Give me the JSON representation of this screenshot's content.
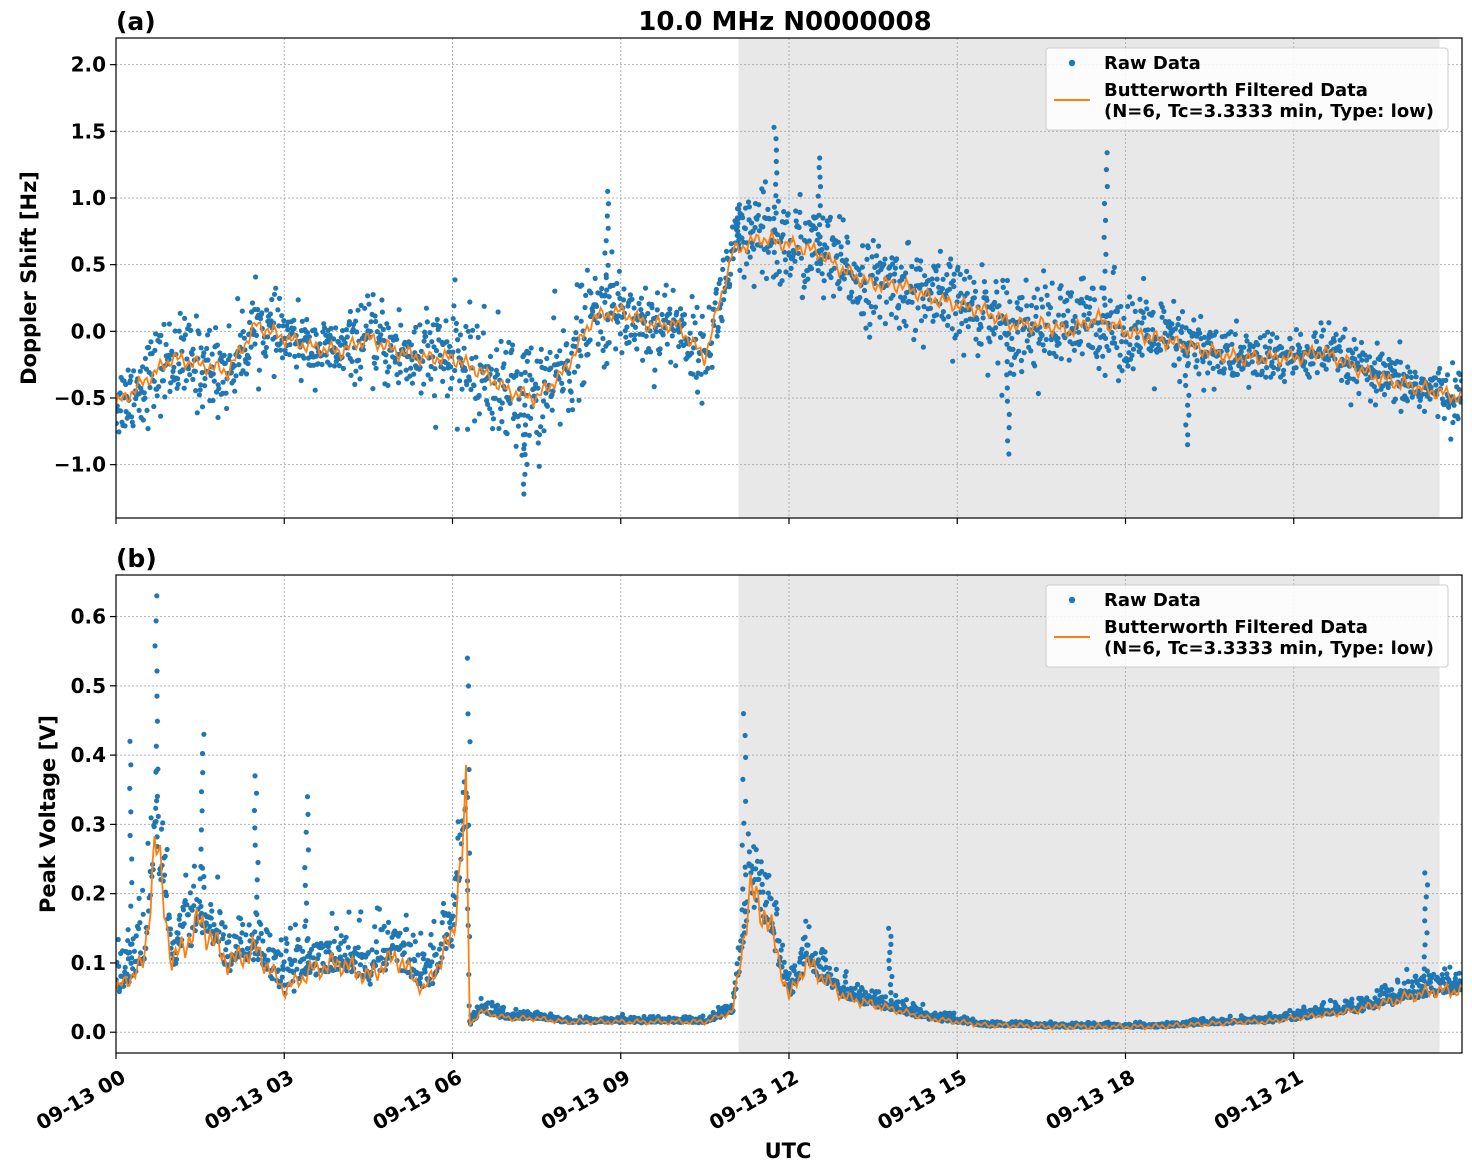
{
  "figure": {
    "title": "10.0 MHz N0000008",
    "xlabel": "UTC"
  },
  "colors": {
    "raw": "#1f77b4",
    "filtered": "#ff7f0e",
    "shade": "#e8e8e8"
  },
  "legend": {
    "raw": "Raw Data",
    "filtered_line1": "Butterworth Filtered Data",
    "filtered_line2": "(N=6, Tc=3.3333 min, Type: low)"
  },
  "chart_data": [
    {
      "type": "scatter",
      "panel_label": "(a)",
      "ylabel": "Doppler Shift [Hz]",
      "xlim": [
        0,
        24
      ],
      "ylim": [
        -1.4,
        2.2
      ],
      "yticks": [
        -1.0,
        -0.5,
        0.0,
        0.5,
        1.0,
        1.5,
        2.0
      ],
      "ytick_labels": [
        "−1.0",
        "−0.5",
        "0.0",
        "0.5",
        "1.0",
        "1.5",
        "2.0"
      ],
      "xticks": [
        0,
        3,
        6,
        9,
        12,
        15,
        18,
        21
      ],
      "xtick_labels": [
        "09-13 00",
        "09-13 03",
        "09-13 06",
        "09-13 09",
        "09-13 12",
        "09-13 15",
        "09-13 18",
        "09-13 21"
      ],
      "shaded_region_hours": [
        11.1,
        23.6
      ],
      "grid": true,
      "legend_position": "top-right",
      "series": [
        {
          "name": "Butterworth Filtered Data",
          "x_hours": [
            0,
            0.5,
            1,
            1.5,
            2,
            2.5,
            3,
            3.5,
            4,
            4.5,
            5,
            5.5,
            6,
            6.5,
            7,
            7.5,
            8,
            8.5,
            9,
            9.5,
            10,
            10.5,
            11,
            11.5,
            12,
            12.5,
            13,
            13.5,
            14,
            14.5,
            15,
            15.5,
            16,
            16.5,
            17,
            17.5,
            18,
            18.5,
            19,
            19.5,
            20,
            20.5,
            21,
            21.5,
            22,
            22.5,
            23,
            23.5,
            24
          ],
          "y": [
            -0.55,
            -0.38,
            -0.2,
            -0.25,
            -0.3,
            0.05,
            -0.05,
            -0.12,
            -0.15,
            -0.05,
            -0.15,
            -0.2,
            -0.2,
            -0.3,
            -0.45,
            -0.5,
            -0.3,
            0.1,
            0.15,
            0.05,
            0.05,
            -0.2,
            0.6,
            0.7,
            0.65,
            0.6,
            0.45,
            0.35,
            0.35,
            0.25,
            0.2,
            0.15,
            0.05,
            0.05,
            0.0,
            0.1,
            0.0,
            -0.05,
            -0.1,
            -0.15,
            -0.2,
            -0.2,
            -0.2,
            -0.15,
            -0.25,
            -0.35,
            -0.4,
            -0.45,
            -0.5
          ]
        },
        {
          "name": "Raw Data",
          "spread": [
            0.25,
            0.28,
            0.3,
            0.3,
            0.28,
            0.25,
            0.22,
            0.2,
            0.2,
            0.25,
            0.3,
            0.32,
            0.35,
            0.38,
            0.4,
            0.4,
            0.38,
            0.35,
            0.32,
            0.3,
            0.28,
            0.25,
            0.3,
            0.35,
            0.35,
            0.32,
            0.3,
            0.28,
            0.28,
            0.3,
            0.3,
            0.3,
            0.32,
            0.32,
            0.32,
            0.32,
            0.3,
            0.28,
            0.25,
            0.22,
            0.2,
            0.18,
            0.18,
            0.18,
            0.18,
            0.18,
            0.18,
            0.18,
            0.18
          ],
          "maxima": [
            [
              11.75,
              1.53
            ],
            [
              12.55,
              1.3
            ],
            [
              17.65,
              1.34
            ],
            [
              8.75,
              1.05
            ],
            [
              11.1,
              0.95
            ],
            [
              7.3,
              -1.22
            ],
            [
              15.9,
              -0.92
            ],
            [
              19.1,
              -0.85
            ]
          ]
        }
      ]
    },
    {
      "type": "scatter",
      "panel_label": "(b)",
      "ylabel": "Peak Voltage [V]",
      "xlim": [
        0,
        24
      ],
      "ylim": [
        -0.03,
        0.66
      ],
      "yticks": [
        0.0,
        0.1,
        0.2,
        0.3,
        0.4,
        0.5,
        0.6
      ],
      "ytick_labels": [
        "0.0",
        "0.1",
        "0.2",
        "0.3",
        "0.4",
        "0.5",
        "0.6"
      ],
      "xticks": [
        0,
        3,
        6,
        9,
        12,
        15,
        18,
        21
      ],
      "xtick_labels": [
        "09-13 00",
        "09-13 03",
        "09-13 06",
        "09-13 09",
        "09-13 12",
        "09-13 15",
        "09-13 18",
        "09-13 21"
      ],
      "shaded_region_hours": [
        11.1,
        23.6
      ],
      "grid": true,
      "legend_position": "top-right",
      "series": [
        {
          "name": "Butterworth Filtered Data",
          "x_hours": [
            0,
            0.5,
            0.7,
            1,
            1.5,
            2,
            2.5,
            3,
            3.5,
            4,
            4.5,
            5,
            5.5,
            6,
            6.25,
            6.3,
            6.5,
            7,
            7.5,
            8,
            8.5,
            9,
            9.5,
            10,
            10.5,
            11,
            11.3,
            11.6,
            12,
            12.3,
            12.6,
            13,
            13.5,
            14,
            14.5,
            15,
            15.5,
            16,
            16.5,
            17,
            17.5,
            18,
            18.5,
            19,
            19.5,
            20,
            20.5,
            21,
            21.5,
            22,
            22.5,
            23,
            23.5,
            24
          ],
          "y": [
            0.06,
            0.1,
            0.28,
            0.1,
            0.16,
            0.1,
            0.12,
            0.06,
            0.09,
            0.1,
            0.08,
            0.11,
            0.06,
            0.14,
            0.33,
            0.01,
            0.03,
            0.02,
            0.02,
            0.015,
            0.015,
            0.015,
            0.015,
            0.015,
            0.015,
            0.03,
            0.2,
            0.17,
            0.05,
            0.1,
            0.08,
            0.05,
            0.04,
            0.03,
            0.02,
            0.015,
            0.01,
            0.01,
            0.008,
            0.008,
            0.008,
            0.008,
            0.008,
            0.01,
            0.012,
            0.015,
            0.015,
            0.02,
            0.025,
            0.03,
            0.04,
            0.05,
            0.06,
            0.06
          ]
        },
        {
          "name": "Raw Data",
          "spread": [
            0.05,
            0.07,
            0.1,
            0.07,
            0.08,
            0.07,
            0.07,
            0.05,
            0.06,
            0.06,
            0.05,
            0.06,
            0.05,
            0.08,
            0.1,
            0.01,
            0.015,
            0.01,
            0.008,
            0.006,
            0.006,
            0.006,
            0.006,
            0.006,
            0.006,
            0.015,
            0.1,
            0.08,
            0.03,
            0.05,
            0.04,
            0.025,
            0.02,
            0.015,
            0.01,
            0.007,
            0.005,
            0.004,
            0.004,
            0.004,
            0.004,
            0.004,
            0.004,
            0.005,
            0.006,
            0.007,
            0.008,
            0.01,
            0.012,
            0.015,
            0.02,
            0.025,
            0.03,
            0.03
          ],
          "maxima": [
            [
              0.72,
              0.63
            ],
            [
              6.28,
              0.54
            ],
            [
              11.2,
              0.46
            ],
            [
              1.55,
              0.43
            ],
            [
              0.25,
              0.42
            ],
            [
              3.4,
              0.34
            ],
            [
              2.5,
              0.37
            ],
            [
              23.35,
              0.23
            ],
            [
              13.8,
              0.15
            ]
          ]
        }
      ]
    }
  ]
}
